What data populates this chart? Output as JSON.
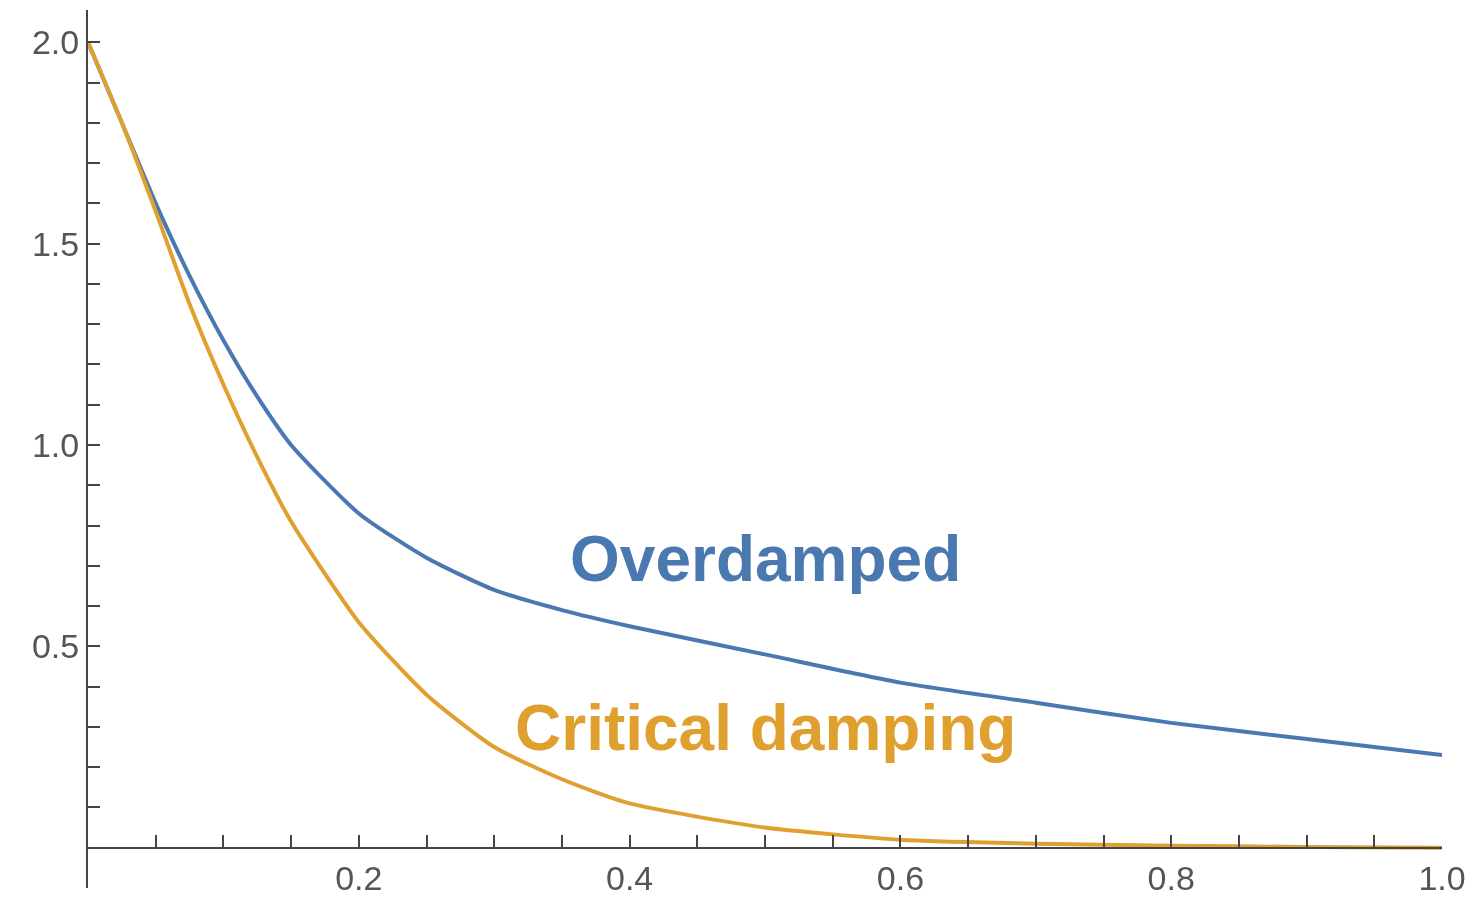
{
  "chart_data": {
    "type": "line",
    "x": [
      0,
      0.025,
      0.05,
      0.075,
      0.1,
      0.125,
      0.15,
      0.2,
      0.25,
      0.3,
      0.35,
      0.4,
      0.5,
      0.6,
      0.7,
      0.8,
      0.9,
      1.0
    ],
    "series": [
      {
        "name": "Overdamped",
        "color": "#4a78b0",
        "values": [
          2,
          1.8,
          1.6,
          1.42,
          1.26,
          1.12,
          1.0,
          0.83,
          0.72,
          0.64,
          0.59,
          0.55,
          0.48,
          0.41,
          0.36,
          0.31,
          0.27,
          0.23
        ]
      },
      {
        "name": "Critical damping",
        "color": "#e0a030",
        "values": [
          2,
          1.8,
          1.58,
          1.35,
          1.15,
          0.97,
          0.81,
          0.56,
          0.38,
          0.25,
          0.17,
          0.11,
          0.05,
          0.02,
          0.01,
          0.005,
          0.002,
          0.0
        ]
      }
    ],
    "xlim": [
      0,
      1.0
    ],
    "ylim": [
      -0.1,
      2.08
    ],
    "xticks": [
      {
        "value": 0.05,
        "label": null
      },
      {
        "value": 0.1,
        "label": null
      },
      {
        "value": 0.15,
        "label": null
      },
      {
        "value": 0.2,
        "label": "0.2"
      },
      {
        "value": 0.25,
        "label": null
      },
      {
        "value": 0.3,
        "label": null
      },
      {
        "value": 0.35,
        "label": null
      },
      {
        "value": 0.4,
        "label": "0.4"
      },
      {
        "value": 0.45,
        "label": null
      },
      {
        "value": 0.5,
        "label": null
      },
      {
        "value": 0.55,
        "label": null
      },
      {
        "value": 0.6,
        "label": "0.6"
      },
      {
        "value": 0.65,
        "label": null
      },
      {
        "value": 0.7,
        "label": null
      },
      {
        "value": 0.75,
        "label": null
      },
      {
        "value": 0.8,
        "label": "0.8"
      },
      {
        "value": 0.85,
        "label": null
      },
      {
        "value": 0.9,
        "label": null
      },
      {
        "value": 0.95,
        "label": null
      },
      {
        "value": 1.0,
        "label": "1.0"
      }
    ],
    "yticks": [
      {
        "value": 0.1,
        "label": null
      },
      {
        "value": 0.2,
        "label": null
      },
      {
        "value": 0.3,
        "label": null
      },
      {
        "value": 0.4,
        "label": null
      },
      {
        "value": 0.5,
        "label": "0.5"
      },
      {
        "value": 0.6,
        "label": null
      },
      {
        "value": 0.7,
        "label": null
      },
      {
        "value": 0.8,
        "label": null
      },
      {
        "value": 0.9,
        "label": null
      },
      {
        "value": 1.0,
        "label": "1.0"
      },
      {
        "value": 1.1,
        "label": null
      },
      {
        "value": 1.2,
        "label": null
      },
      {
        "value": 1.3,
        "label": null
      },
      {
        "value": 1.4,
        "label": null
      },
      {
        "value": 1.5,
        "label": "1.5"
      },
      {
        "value": 1.6,
        "label": null
      },
      {
        "value": 1.7,
        "label": null
      },
      {
        "value": 1.8,
        "label": null
      },
      {
        "value": 1.9,
        "label": null
      },
      {
        "value": 2.0,
        "label": "2.0"
      }
    ],
    "grid": false,
    "legend": false
  }
}
